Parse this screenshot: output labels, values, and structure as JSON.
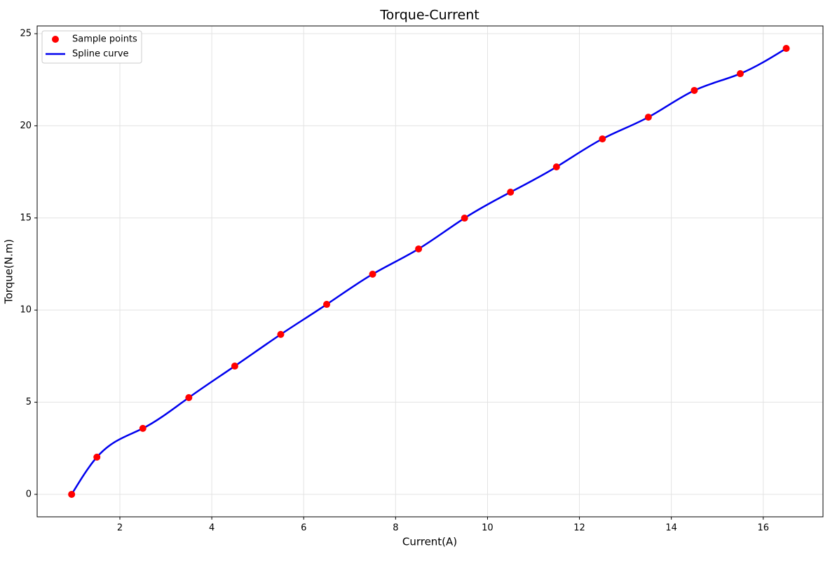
{
  "chart_data": {
    "type": "scatter-spline",
    "title": "Torque-Current",
    "x_label": "Current(A)",
    "y_label": "Torque(N.m)",
    "xlim": [
      0.2,
      17.3
    ],
    "ylim": [
      -1.22,
      25.42
    ],
    "xticks": [
      2,
      4,
      6,
      8,
      10,
      12,
      14,
      16
    ],
    "yticks": [
      0,
      5,
      10,
      15,
      20,
      25
    ],
    "grid": true,
    "legend": "upper left",
    "series": [
      {
        "name": "Sample points",
        "color": "#ff0000",
        "kind": "scatter",
        "x": [
          0.95,
          1.5,
          2.5,
          3.5,
          4.5,
          5.5,
          6.5,
          7.5,
          8.5,
          9.5,
          10.5,
          11.5,
          12.5,
          13.5,
          14.5,
          15.5,
          16.5
        ],
        "values": [
          0,
          2.02,
          3.58,
          5.25,
          6.96,
          8.68,
          10.31,
          11.95,
          13.32,
          14.99,
          16.4,
          17.77,
          19.29,
          20.47,
          21.92,
          22.83,
          24.2
        ]
      },
      {
        "name": "Spline curve",
        "color": "#0000ee",
        "kind": "spline",
        "x": [
          0.95,
          1.5,
          2.5,
          3.5,
          4.5,
          5.5,
          6.5,
          7.5,
          8.5,
          9.5,
          10.5,
          11.5,
          12.5,
          13.5,
          14.5,
          15.5,
          16.5
        ],
        "values": [
          0,
          2.02,
          3.58,
          5.25,
          6.96,
          8.68,
          10.31,
          11.95,
          13.32,
          14.99,
          16.4,
          17.77,
          19.29,
          20.47,
          21.92,
          22.83,
          24.2
        ]
      }
    ]
  }
}
